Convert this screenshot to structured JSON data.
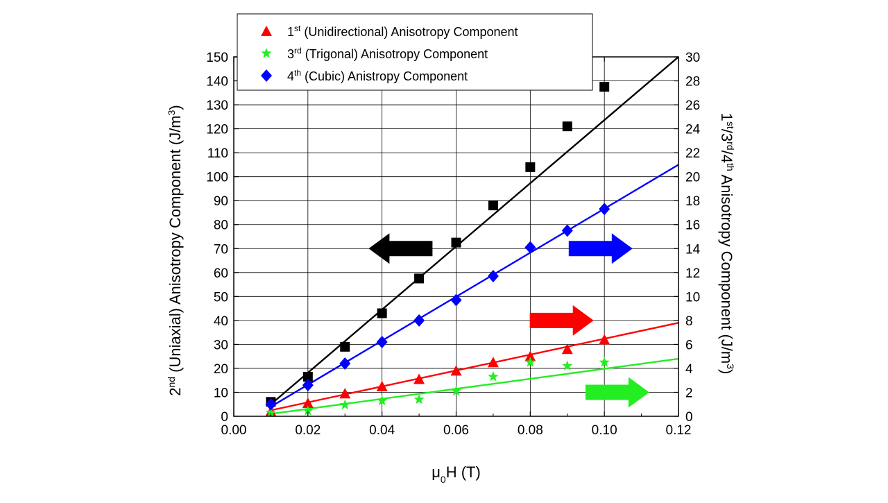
{
  "chart_data": {
    "type": "scatter",
    "title": "",
    "xlabel": "μ0H (T)",
    "ylabel_left": "2nd (Uniaxial) Anisotropy Component (J/m3)",
    "ylabel_right": "1st/3rd/4th Anisotropy Component (J/m3)",
    "xlim": [
      0.0,
      0.12
    ],
    "ylim_left": [
      0,
      150
    ],
    "ylim_right": [
      0,
      30
    ],
    "grid": true,
    "legend_position": "top",
    "x_ticks": [
      "0.00",
      "0.02",
      "0.04",
      "0.06",
      "0.08",
      "0.10",
      "0.12"
    ],
    "y_ticks_left": [
      "0",
      "10",
      "20",
      "30",
      "40",
      "50",
      "60",
      "70",
      "80",
      "90",
      "100",
      "110",
      "120",
      "130",
      "140",
      "150"
    ],
    "y_ticks_right": [
      "0",
      "2",
      "4",
      "6",
      "8",
      "10",
      "12",
      "14",
      "16",
      "18",
      "20",
      "22",
      "24",
      "26",
      "28",
      "30"
    ],
    "legend": [
      {
        "sup": "st",
        "order": "1",
        "text": " (Unidirectional) Anisotropy Component",
        "color": "#ff0000",
        "marker": "triangle"
      },
      {
        "sup": "rd",
        "order": "3",
        "text": " (Trigonal) Anisotropy Component",
        "color": "#22ee22",
        "marker": "star"
      },
      {
        "sup": "th",
        "order": "4",
        "text": " (Cubic) Anistropy Component",
        "color": "#0000ff",
        "marker": "diamond"
      }
    ],
    "series": [
      {
        "axis": "left",
        "marker": "square",
        "color": "#000000",
        "x": [
          0.01,
          0.02,
          0.03,
          0.04,
          0.05,
          0.06,
          0.07,
          0.08,
          0.09,
          0.1
        ],
        "y": [
          6,
          16.5,
          29,
          43,
          57.5,
          72.5,
          88,
          104,
          121,
          137.5
        ],
        "fit": {
          "x": [
            0.01,
            0.12
          ],
          "y": [
            5,
            150
          ]
        }
      },
      {
        "axis": "right",
        "marker": "triangle",
        "color": "#ff0000",
        "x": [
          0.01,
          0.02,
          0.03,
          0.04,
          0.05,
          0.06,
          0.07,
          0.08,
          0.09,
          0.1
        ],
        "y": [
          0.4,
          1.1,
          1.9,
          2.5,
          3.1,
          3.8,
          4.5,
          5.0,
          5.6,
          6.4
        ],
        "fit": {
          "x": [
            0.01,
            0.12
          ],
          "y": [
            0.5,
            7.8
          ]
        }
      },
      {
        "axis": "right",
        "marker": "star",
        "color": "#22ee22",
        "x": [
          0.01,
          0.02,
          0.03,
          0.04,
          0.05,
          0.06,
          0.07,
          0.08,
          0.09,
          0.1
        ],
        "y": [
          0.3,
          0.45,
          0.95,
          1.3,
          1.4,
          2.1,
          3.3,
          4.5,
          4.2,
          4.5
        ],
        "fit": {
          "x": [
            0.01,
            0.12
          ],
          "y": [
            0.2,
            4.8
          ]
        }
      },
      {
        "axis": "right",
        "marker": "diamond",
        "color": "#0000ff",
        "x": [
          0.01,
          0.02,
          0.03,
          0.04,
          0.05,
          0.06,
          0.07,
          0.08,
          0.09,
          0.1
        ],
        "y": [
          1.0,
          2.6,
          4.4,
          6.2,
          8.0,
          9.7,
          11.7,
          14.1,
          15.5,
          17.3
        ],
        "fit": {
          "x": [
            0.01,
            0.12
          ],
          "y": [
            0.8,
            21
          ]
        }
      }
    ],
    "arrows": [
      {
        "direction": "left",
        "color": "#000000",
        "x": 0.045,
        "y_left": 70
      },
      {
        "direction": "right",
        "color": "#0000ff",
        "x": 0.099,
        "y_left": 70
      },
      {
        "direction": "right",
        "color": "#ff0000",
        "x": 0.0885,
        "y_left": 40
      },
      {
        "direction": "right",
        "color": "#22ee22",
        "x": 0.1035,
        "y_left": 10
      }
    ]
  }
}
